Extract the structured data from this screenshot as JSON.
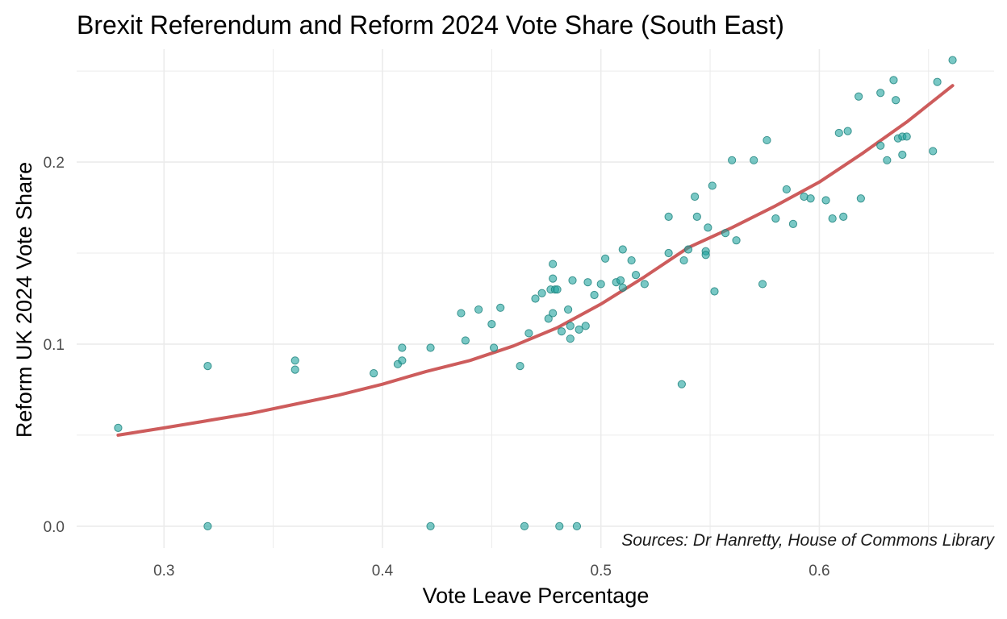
{
  "chart_data": {
    "type": "scatter",
    "title": "Brexit Referendum and Reform 2024 Vote Share (South East)",
    "xlabel": "Vote Leave Percentage",
    "ylabel": "Reform UK 2024 Vote Share",
    "caption": "Sources: Dr Hanretty, House of Commons Library",
    "xlim": [
      0.26,
      0.68
    ],
    "ylim": [
      -0.012,
      0.262
    ],
    "x_ticks": [
      0.3,
      0.4,
      0.5,
      0.6
    ],
    "x_tick_labels": [
      "0.3",
      "0.4",
      "0.5",
      "0.6"
    ],
    "y_ticks": [
      0.0,
      0.1,
      0.2
    ],
    "y_tick_labels": [
      "0.0",
      "0.1",
      "0.2"
    ],
    "grid": true,
    "colors": {
      "points": "#20a39e",
      "points_stroke": "#1a7f7a",
      "trend": "#cd5c5c",
      "grid": "#ebebeb"
    },
    "points": [
      [
        0.279,
        0.054
      ],
      [
        0.32,
        0.088
      ],
      [
        0.32,
        0.0
      ],
      [
        0.36,
        0.091
      ],
      [
        0.36,
        0.086
      ],
      [
        0.396,
        0.084
      ],
      [
        0.407,
        0.089
      ],
      [
        0.409,
        0.091
      ],
      [
        0.409,
        0.098
      ],
      [
        0.422,
        0.098
      ],
      [
        0.422,
        0.0
      ],
      [
        0.436,
        0.117
      ],
      [
        0.438,
        0.102
      ],
      [
        0.444,
        0.119
      ],
      [
        0.45,
        0.111
      ],
      [
        0.451,
        0.098
      ],
      [
        0.454,
        0.12
      ],
      [
        0.463,
        0.088
      ],
      [
        0.465,
        0.0
      ],
      [
        0.467,
        0.106
      ],
      [
        0.47,
        0.125
      ],
      [
        0.473,
        0.128
      ],
      [
        0.476,
        0.114
      ],
      [
        0.477,
        0.13
      ],
      [
        0.478,
        0.117
      ],
      [
        0.478,
        0.136
      ],
      [
        0.478,
        0.144
      ],
      [
        0.479,
        0.13
      ],
      [
        0.48,
        0.13
      ],
      [
        0.481,
        0.0
      ],
      [
        0.482,
        0.107
      ],
      [
        0.485,
        0.119
      ],
      [
        0.486,
        0.103
      ],
      [
        0.486,
        0.11
      ],
      [
        0.487,
        0.135
      ],
      [
        0.489,
        0.0
      ],
      [
        0.49,
        0.108
      ],
      [
        0.493,
        0.11
      ],
      [
        0.494,
        0.134
      ],
      [
        0.497,
        0.127
      ],
      [
        0.5,
        0.133
      ],
      [
        0.502,
        0.147
      ],
      [
        0.507,
        0.134
      ],
      [
        0.509,
        0.135
      ],
      [
        0.51,
        0.131
      ],
      [
        0.51,
        0.152
      ],
      [
        0.514,
        0.146
      ],
      [
        0.516,
        0.138
      ],
      [
        0.52,
        0.133
      ],
      [
        0.531,
        0.15
      ],
      [
        0.531,
        0.17
      ],
      [
        0.537,
        0.078
      ],
      [
        0.538,
        0.146
      ],
      [
        0.54,
        0.152
      ],
      [
        0.543,
        0.181
      ],
      [
        0.544,
        0.17
      ],
      [
        0.548,
        0.151
      ],
      [
        0.548,
        0.149
      ],
      [
        0.549,
        0.164
      ],
      [
        0.551,
        0.187
      ],
      [
        0.552,
        0.129
      ],
      [
        0.557,
        0.161
      ],
      [
        0.56,
        0.201
      ],
      [
        0.562,
        0.157
      ],
      [
        0.57,
        0.201
      ],
      [
        0.574,
        0.133
      ],
      [
        0.576,
        0.212
      ],
      [
        0.58,
        0.169
      ],
      [
        0.585,
        0.185
      ],
      [
        0.588,
        0.166
      ],
      [
        0.593,
        0.181
      ],
      [
        0.596,
        0.18
      ],
      [
        0.603,
        0.179
      ],
      [
        0.606,
        0.169
      ],
      [
        0.609,
        0.216
      ],
      [
        0.611,
        0.17
      ],
      [
        0.613,
        0.217
      ],
      [
        0.618,
        0.236
      ],
      [
        0.619,
        0.18
      ],
      [
        0.628,
        0.209
      ],
      [
        0.628,
        0.238
      ],
      [
        0.631,
        0.201
      ],
      [
        0.634,
        0.245
      ],
      [
        0.635,
        0.234
      ],
      [
        0.636,
        0.213
      ],
      [
        0.638,
        0.204
      ],
      [
        0.638,
        0.214
      ],
      [
        0.64,
        0.214
      ],
      [
        0.652,
        0.206
      ],
      [
        0.654,
        0.244
      ],
      [
        0.661,
        0.256
      ]
    ],
    "trend_line": [
      [
        0.279,
        0.05
      ],
      [
        0.3,
        0.054
      ],
      [
        0.32,
        0.058
      ],
      [
        0.34,
        0.062
      ],
      [
        0.36,
        0.067
      ],
      [
        0.38,
        0.072
      ],
      [
        0.4,
        0.078
      ],
      [
        0.42,
        0.085
      ],
      [
        0.44,
        0.091
      ],
      [
        0.46,
        0.099
      ],
      [
        0.48,
        0.109
      ],
      [
        0.5,
        0.122
      ],
      [
        0.52,
        0.137
      ],
      [
        0.54,
        0.153
      ],
      [
        0.56,
        0.164
      ],
      [
        0.58,
        0.176
      ],
      [
        0.6,
        0.189
      ],
      [
        0.62,
        0.205
      ],
      [
        0.64,
        0.222
      ],
      [
        0.661,
        0.242
      ]
    ]
  }
}
